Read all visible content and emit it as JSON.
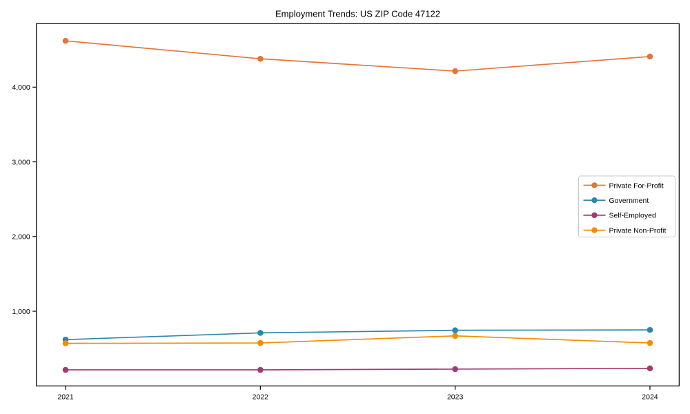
{
  "figure": {
    "title": "Employment Trends: US ZIP Code 47122",
    "background_color": "#ffffff",
    "frame_color": "#000000",
    "legend_border_color": "#c9c9c9"
  },
  "chart_data": {
    "type": "line",
    "title": "Employment Trends: US ZIP Code 47122",
    "xlabel": "",
    "ylabel": "",
    "x": [
      2021,
      2022,
      2023,
      2024
    ],
    "x_tick_labels": [
      "2021",
      "2022",
      "2023",
      "2024"
    ],
    "y_tick_values": [
      1000,
      2000,
      3000,
      4000
    ],
    "y_tick_labels": [
      "1,000",
      "2,000",
      "3,000",
      "4,000"
    ],
    "xlim": [
      2020.85,
      2024.15
    ],
    "ylim": [
      0,
      4850
    ],
    "grid": false,
    "legend_position": "right-middle",
    "marker": "circle",
    "series": [
      {
        "name": "Private For-Profit",
        "color": "#e0763c",
        "values": [
          4620,
          4380,
          4215,
          4410
        ]
      },
      {
        "name": "Government",
        "color": "#2e86ab",
        "values": [
          620,
          710,
          745,
          750
        ]
      },
      {
        "name": "Self-Employed",
        "color": "#a23b72",
        "values": [
          215,
          215,
          225,
          235
        ]
      },
      {
        "name": "Private Non-Profit",
        "color": "#f18f01",
        "values": [
          570,
          575,
          670,
          575
        ]
      }
    ]
  }
}
